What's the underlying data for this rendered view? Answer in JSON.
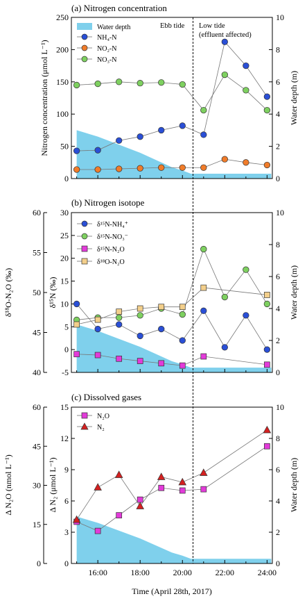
{
  "chart_data": [
    {
      "type": "line",
      "title": "(a) Nitrogen concentration",
      "ylabel": "Nitrogen concentration (μmol L⁻¹)",
      "y2label": "Water depth (m)",
      "ylim": [
        0,
        250
      ],
      "yticks": [
        0,
        50,
        100,
        150,
        200,
        250
      ],
      "y2lim": [
        0,
        10
      ],
      "y2ticks": [
        0,
        2,
        4,
        6,
        8,
        10
      ],
      "annotations": [
        "Ebb tide",
        "Low tide",
        "(effluent affected)"
      ],
      "legend": [
        "Water depth",
        "NH₄-N",
        "NO₂-N",
        "NO₃-N"
      ],
      "series": [
        {
          "name": "NH₄-N",
          "color": "#2a4fd6",
          "marker": "circle",
          "x": [
            15,
            16,
            17,
            18,
            19,
            20,
            21,
            22,
            23,
            24
          ],
          "y": [
            43,
            44,
            59,
            65,
            75,
            82,
            68,
            212,
            175,
            127
          ]
        },
        {
          "name": "NO₂-N",
          "color": "#f07c2a",
          "marker": "circle",
          "x": [
            15,
            16,
            17,
            18,
            19,
            20,
            21,
            22,
            23,
            24
          ],
          "y": [
            14,
            14,
            15,
            16,
            17,
            17,
            17,
            30,
            25,
            21
          ]
        },
        {
          "name": "NO₃-N",
          "color": "#7ed060",
          "marker": "circle",
          "x": [
            15,
            16,
            17,
            18,
            19,
            20,
            21,
            22,
            23,
            24
          ],
          "y": [
            145,
            147,
            150,
            148,
            149,
            146,
            106,
            161,
            137,
            106
          ]
        }
      ]
    },
    {
      "type": "line",
      "title": "(b) Nitrogen isotope",
      "ylabel": "δ¹⁵N (‰)",
      "y2label": "Water depth (m)",
      "y3label": "δ¹⁸O-N₂O (‰)",
      "ylim": [
        -5,
        30
      ],
      "yticks": [
        -5,
        0,
        5,
        10,
        15,
        20,
        25,
        30
      ],
      "y2lim": [
        0,
        10
      ],
      "y2ticks": [
        0,
        2,
        4,
        6,
        8,
        10
      ],
      "y3lim": [
        40,
        60
      ],
      "y3ticks": [
        40,
        45,
        50,
        55,
        60
      ],
      "legend": [
        "δ¹⁵N-NH₄⁺",
        "δ¹⁵N-NO₃⁻",
        "δ¹⁵N-N₂O",
        "δ¹⁸O-N₂O"
      ],
      "series": [
        {
          "name": "δ¹⁵N-NH₄⁺",
          "color": "#2a4fd6",
          "marker": "circle",
          "x": [
            15,
            16,
            17,
            18,
            19,
            20,
            21,
            22,
            23,
            24
          ],
          "y": [
            10.0,
            4.5,
            5.5,
            3.0,
            4.5,
            2.0,
            8.5,
            0.5,
            7.5,
            0.0
          ]
        },
        {
          "name": "δ¹⁵N-NO₃⁻",
          "color": "#7ed060",
          "marker": "circle",
          "x": [
            15,
            16,
            17,
            18,
            19,
            20,
            21,
            22,
            23,
            24
          ],
          "y": [
            6.5,
            7.0,
            7.0,
            7.5,
            9.0,
            7.7,
            22.0,
            11.5,
            17.5,
            10.0
          ]
        },
        {
          "name": "δ¹⁵N-N₂O",
          "color": "#e23bd9",
          "marker": "square",
          "x": [
            15,
            16,
            17,
            18,
            19,
            20,
            21,
            24
          ],
          "y": [
            -1.0,
            -1.2,
            -2.0,
            -2.5,
            -3.0,
            -3.5,
            -1.5,
            -3.3
          ]
        },
        {
          "name": "δ¹⁸O-N₂O",
          "color": "#f3cf8b",
          "marker": "square",
          "axis": "y3",
          "x": [
            15,
            16,
            17,
            18,
            19,
            20,
            21,
            24
          ],
          "y": [
            46.0,
            46.6,
            47.6,
            48.0,
            48.2,
            48.2,
            50.6,
            49.7
          ]
        }
      ]
    },
    {
      "type": "line",
      "title": "(c) Dissolved gases",
      "ylabel": "Δ N₂ (μmol L⁻¹)",
      "y2label": "Water depth (m)",
      "y3label": "Δ N₂O (nmol L⁻¹)",
      "xlabel": "Time (April 28th, 2017)",
      "xticks": [
        "16:00",
        "18:00",
        "20:00",
        "22:00",
        "24:00"
      ],
      "ylim": [
        0,
        15
      ],
      "yticks": [
        0,
        3,
        6,
        9,
        12,
        15
      ],
      "y2lim": [
        0,
        10
      ],
      "y2ticks": [
        0,
        2,
        4,
        6,
        8,
        10
      ],
      "y3lim": [
        0,
        60
      ],
      "y3ticks": [
        0,
        15,
        30,
        45,
        60
      ],
      "legend": [
        "N₂O",
        "N₂"
      ],
      "series": [
        {
          "name": "N₂O",
          "color": "#e23bd9",
          "marker": "square",
          "axis": "y3",
          "x": [
            15,
            16,
            17,
            18,
            19,
            20,
            21,
            24
          ],
          "y": [
            16.0,
            12.5,
            18.5,
            24.5,
            29.0,
            28.0,
            28.5,
            45.0
          ]
        },
        {
          "name": "N₂",
          "color": "#d42020",
          "marker": "triangle",
          "x": [
            15,
            16,
            17,
            18,
            19,
            20,
            21,
            24
          ],
          "y": [
            4.2,
            7.3,
            8.5,
            5.5,
            8.3,
            7.8,
            8.7,
            12.8
          ]
        }
      ]
    }
  ],
  "water_depth": {
    "name": "Water depth",
    "color": "#7fd0ec",
    "x": [
      15,
      16,
      17,
      18,
      19,
      19.5,
      20,
      20.4,
      24.2
    ],
    "y": [
      3.0,
      2.6,
      2.1,
      1.6,
      1.0,
      0.7,
      0.5,
      0.3,
      0.3
    ]
  },
  "divider_x": 20.5,
  "x_ticks_numeric": [
    16,
    18,
    20,
    22,
    24
  ]
}
